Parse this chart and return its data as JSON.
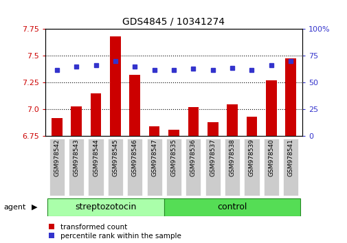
{
  "title": "GDS4845 / 10341274",
  "samples": [
    "GSM978542",
    "GSM978543",
    "GSM978544",
    "GSM978545",
    "GSM978546",
    "GSM978547",
    "GSM978535",
    "GSM978536",
    "GSM978537",
    "GSM978538",
    "GSM978539",
    "GSM978540",
    "GSM978541"
  ],
  "bar_values": [
    6.92,
    7.03,
    7.15,
    7.68,
    7.32,
    6.84,
    6.81,
    7.02,
    6.88,
    7.05,
    6.93,
    7.27,
    7.48
  ],
  "dot_values": [
    62,
    65,
    66,
    70,
    65,
    62,
    62,
    63,
    62,
    64,
    62,
    66,
    70
  ],
  "ylim": [
    6.75,
    7.75
  ],
  "y2lim": [
    0,
    100
  ],
  "yticks": [
    6.75,
    7.0,
    7.25,
    7.5,
    7.75
  ],
  "y2ticks": [
    0,
    25,
    50,
    75,
    100
  ],
  "y2ticklabels": [
    "0",
    "25",
    "50",
    "75",
    "100%"
  ],
  "bar_color": "#cc0000",
  "dot_color": "#3333cc",
  "streptozotocin_color": "#aaffaa",
  "control_color": "#55dd55",
  "group_border_color": "#228822",
  "grid_linestyle": "dotted",
  "bar_width": 0.55,
  "n_strep": 6,
  "n_control": 7
}
